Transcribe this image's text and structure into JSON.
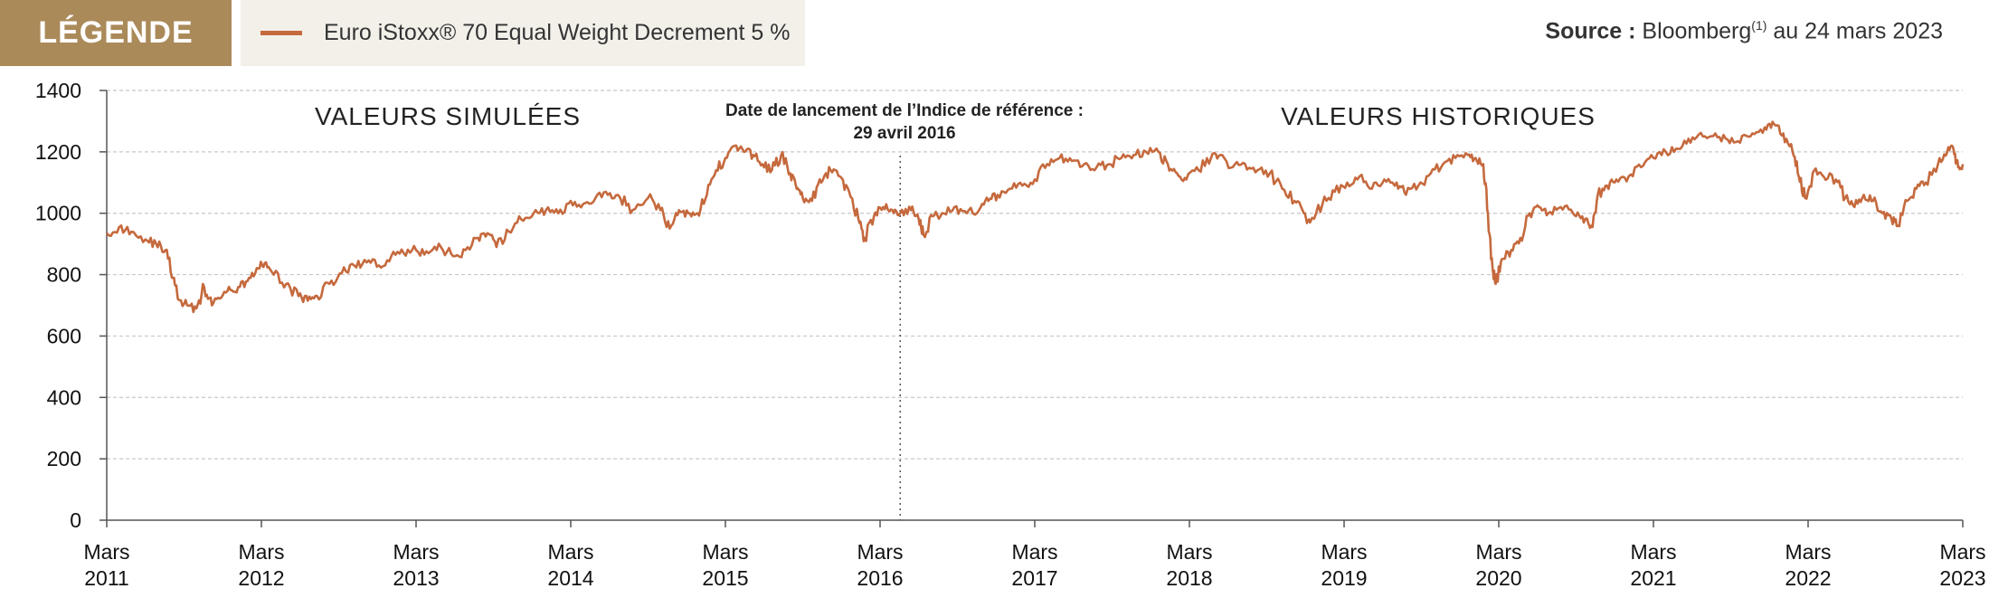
{
  "legend": {
    "title": "LÉGENDE",
    "series_label": "Euro iStoxx® 70 Equal Weight Decrement 5 %",
    "series_color": "#c5693d",
    "header_color": "#ab8a5a"
  },
  "source": {
    "label": "Source :",
    "text": "Bloomberg",
    "footnote": "(1)",
    "date_text": "au 24 mars 2023"
  },
  "annotations": {
    "simulated": "VALEURS SIMULÉES",
    "historical": "VALEURS HISTORIQUES",
    "launch_line1": "Date de lancement de l’Indice de référence :",
    "launch_line2": "29 avril 2016"
  },
  "chart_data": {
    "type": "line",
    "title": "",
    "xlabel": "",
    "ylabel": "",
    "ylim": [
      0,
      1400
    ],
    "yticks": [
      0,
      200,
      400,
      600,
      800,
      1000,
      1200,
      1400
    ],
    "xticks": [
      {
        "label1": "Mars",
        "label2": "2011",
        "x": 2011.2
      },
      {
        "label1": "Mars",
        "label2": "2012",
        "x": 2012.2
      },
      {
        "label1": "Mars",
        "label2": "2013",
        "x": 2013.2
      },
      {
        "label1": "Mars",
        "label2": "2014",
        "x": 2014.2
      },
      {
        "label1": "Mars",
        "label2": "2015",
        "x": 2015.2
      },
      {
        "label1": "Mars",
        "label2": "2016",
        "x": 2016.2
      },
      {
        "label1": "Mars",
        "label2": "2017",
        "x": 2017.2
      },
      {
        "label1": "Mars",
        "label2": "2018",
        "x": 2018.2
      },
      {
        "label1": "Mars",
        "label2": "2019",
        "x": 2019.2
      },
      {
        "label1": "Mars",
        "label2": "2020",
        "x": 2020.2
      },
      {
        "label1": "Mars",
        "label2": "2021",
        "x": 2021.2
      },
      {
        "label1": "Mars",
        "label2": "2022",
        "x": 2022.2
      },
      {
        "label1": "Mars",
        "label2": "2023",
        "x": 2023.2
      }
    ],
    "xlim": [
      2011.2,
      2023.2
    ],
    "launch_x": 2016.33,
    "grid": true,
    "series": [
      {
        "color": "#c5693d",
        "points": [
          [
            2011.2,
            935
          ],
          [
            2011.28,
            955
          ],
          [
            2011.36,
            940
          ],
          [
            2011.45,
            915
          ],
          [
            2011.52,
            900
          ],
          [
            2011.58,
            880
          ],
          [
            2011.63,
            790
          ],
          [
            2011.66,
            720
          ],
          [
            2011.72,
            700
          ],
          [
            2011.78,
            690
          ],
          [
            2011.83,
            760
          ],
          [
            2011.88,
            700
          ],
          [
            2011.94,
            725
          ],
          [
            2012.0,
            750
          ],
          [
            2012.06,
            760
          ],
          [
            2012.12,
            790
          ],
          [
            2012.18,
            820
          ],
          [
            2012.23,
            840
          ],
          [
            2012.28,
            800
          ],
          [
            2012.36,
            770
          ],
          [
            2012.44,
            730
          ],
          [
            2012.5,
            715
          ],
          [
            2012.56,
            730
          ],
          [
            2012.64,
            770
          ],
          [
            2012.72,
            805
          ],
          [
            2012.8,
            830
          ],
          [
            2012.88,
            840
          ],
          [
            2012.96,
            830
          ],
          [
            2013.04,
            860
          ],
          [
            2013.12,
            870
          ],
          [
            2013.2,
            880
          ],
          [
            2013.28,
            870
          ],
          [
            2013.36,
            890
          ],
          [
            2013.44,
            860
          ],
          [
            2013.52,
            880
          ],
          [
            2013.6,
            920
          ],
          [
            2013.66,
            935
          ],
          [
            2013.72,
            890
          ],
          [
            2013.8,
            940
          ],
          [
            2013.88,
            980
          ],
          [
            2013.96,
            1000
          ],
          [
            2014.04,
            1010
          ],
          [
            2014.12,
            1000
          ],
          [
            2014.2,
            1040
          ],
          [
            2014.28,
            1030
          ],
          [
            2014.36,
            1050
          ],
          [
            2014.44,
            1060
          ],
          [
            2014.52,
            1050
          ],
          [
            2014.6,
            1010
          ],
          [
            2014.7,
            1050
          ],
          [
            2014.78,
            1010
          ],
          [
            2014.84,
            950
          ],
          [
            2014.9,
            1010
          ],
          [
            2014.96,
            1000
          ],
          [
            2015.02,
            1000
          ],
          [
            2015.08,
            1060
          ],
          [
            2015.14,
            1140
          ],
          [
            2015.2,
            1180
          ],
          [
            2015.26,
            1220
          ],
          [
            2015.32,
            1200
          ],
          [
            2015.38,
            1190
          ],
          [
            2015.44,
            1160
          ],
          [
            2015.5,
            1140
          ],
          [
            2015.56,
            1190
          ],
          [
            2015.62,
            1130
          ],
          [
            2015.66,
            1080
          ],
          [
            2015.7,
            1050
          ],
          [
            2015.76,
            1040
          ],
          [
            2015.82,
            1100
          ],
          [
            2015.88,
            1140
          ],
          [
            2015.94,
            1120
          ],
          [
            2016.0,
            1070
          ],
          [
            2016.06,
            980
          ],
          [
            2016.1,
            920
          ],
          [
            2016.16,
            990
          ],
          [
            2016.22,
            1020
          ],
          [
            2016.28,
            1010
          ],
          [
            2016.33,
            1000
          ],
          [
            2016.4,
            1010
          ],
          [
            2016.45,
            980
          ],
          [
            2016.48,
            930
          ],
          [
            2016.54,
            990
          ],
          [
            2016.6,
            1000
          ],
          [
            2016.68,
            1020
          ],
          [
            2016.76,
            1000
          ],
          [
            2016.84,
            1010
          ],
          [
            2016.9,
            1040
          ],
          [
            2016.96,
            1060
          ],
          [
            2017.04,
            1080
          ],
          [
            2017.12,
            1090
          ],
          [
            2017.2,
            1110
          ],
          [
            2017.28,
            1160
          ],
          [
            2017.36,
            1180
          ],
          [
            2017.44,
            1170
          ],
          [
            2017.52,
            1160
          ],
          [
            2017.6,
            1150
          ],
          [
            2017.68,
            1160
          ],
          [
            2017.76,
            1180
          ],
          [
            2017.84,
            1190
          ],
          [
            2017.92,
            1200
          ],
          [
            2018.0,
            1200
          ],
          [
            2018.06,
            1160
          ],
          [
            2018.12,
            1130
          ],
          [
            2018.18,
            1110
          ],
          [
            2018.26,
            1140
          ],
          [
            2018.34,
            1180
          ],
          [
            2018.4,
            1190
          ],
          [
            2018.48,
            1150
          ],
          [
            2018.56,
            1160
          ],
          [
            2018.64,
            1140
          ],
          [
            2018.72,
            1130
          ],
          [
            2018.8,
            1080
          ],
          [
            2018.88,
            1040
          ],
          [
            2018.94,
            1000
          ],
          [
            2018.98,
            970
          ],
          [
            2019.06,
            1030
          ],
          [
            2019.14,
            1070
          ],
          [
            2019.22,
            1100
          ],
          [
            2019.3,
            1120
          ],
          [
            2019.38,
            1080
          ],
          [
            2019.46,
            1110
          ],
          [
            2019.54,
            1100
          ],
          [
            2019.6,
            1060
          ],
          [
            2019.68,
            1090
          ],
          [
            2019.76,
            1130
          ],
          [
            2019.84,
            1160
          ],
          [
            2019.92,
            1180
          ],
          [
            2020.0,
            1190
          ],
          [
            2020.05,
            1180
          ],
          [
            2020.1,
            1160
          ],
          [
            2020.13,
            1000
          ],
          [
            2020.16,
            820
          ],
          [
            2020.18,
            770
          ],
          [
            2020.22,
            850
          ],
          [
            2020.28,
            880
          ],
          [
            2020.34,
            920
          ],
          [
            2020.4,
            1000
          ],
          [
            2020.46,
            1020
          ],
          [
            2020.52,
            1000
          ],
          [
            2020.6,
            1020
          ],
          [
            2020.68,
            1000
          ],
          [
            2020.74,
            990
          ],
          [
            2020.8,
            960
          ],
          [
            2020.84,
            1060
          ],
          [
            2020.9,
            1090
          ],
          [
            2020.96,
            1110
          ],
          [
            2021.04,
            1120
          ],
          [
            2021.12,
            1150
          ],
          [
            2021.2,
            1180
          ],
          [
            2021.28,
            1200
          ],
          [
            2021.36,
            1210
          ],
          [
            2021.44,
            1230
          ],
          [
            2021.52,
            1250
          ],
          [
            2021.6,
            1260
          ],
          [
            2021.68,
            1240
          ],
          [
            2021.76,
            1230
          ],
          [
            2021.84,
            1260
          ],
          [
            2021.92,
            1280
          ],
          [
            2021.98,
            1290
          ],
          [
            2022.04,
            1260
          ],
          [
            2022.1,
            1200
          ],
          [
            2022.14,
            1120
          ],
          [
            2022.18,
            1050
          ],
          [
            2022.24,
            1140
          ],
          [
            2022.3,
            1120
          ],
          [
            2022.38,
            1110
          ],
          [
            2022.44,
            1050
          ],
          [
            2022.5,
            1020
          ],
          [
            2022.56,
            1060
          ],
          [
            2022.62,
            1040
          ],
          [
            2022.68,
            1000
          ],
          [
            2022.74,
            980
          ],
          [
            2022.78,
            960
          ],
          [
            2022.84,
            1040
          ],
          [
            2022.9,
            1080
          ],
          [
            2022.96,
            1100
          ],
          [
            2023.04,
            1160
          ],
          [
            2023.1,
            1200
          ],
          [
            2023.14,
            1210
          ],
          [
            2023.17,
            1150
          ],
          [
            2023.2,
            1160
          ]
        ]
      }
    ]
  }
}
